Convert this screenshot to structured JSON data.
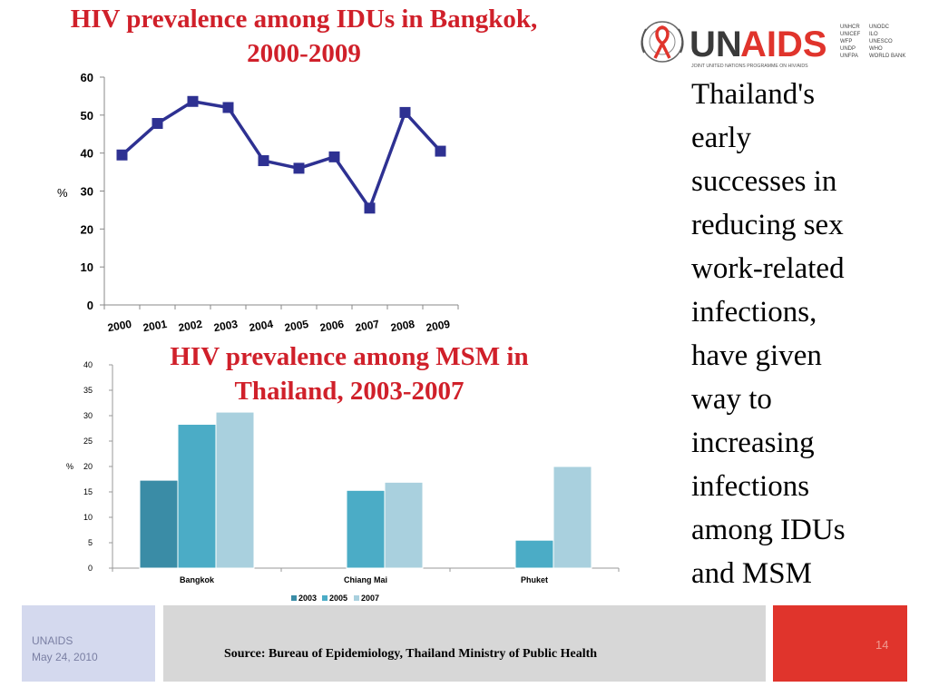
{
  "slide": {
    "side_text_lines": [
      "Thailand's",
      "early",
      "successes in",
      "reducing sex",
      "work-related",
      "infections,",
      "have given",
      "way to",
      "increasing",
      "infections",
      "among IDUs",
      "and MSM"
    ],
    "footer": {
      "org": "UNAIDS",
      "date": "May 24, 2010",
      "source": "Source: Bureau of Epidemiology, Thailand Ministry of Public Health",
      "page": "14"
    }
  },
  "logo": {
    "wordmark": "UNAIDS",
    "tagline": "JOINT UNITED NATIONS PROGRAMME ON HIV/AIDS",
    "cosponsors_col1": [
      "UNHCR",
      "UNICEF",
      "WFP",
      "UNDP",
      "UNFPA"
    ],
    "cosponsors_col2": [
      "UNODC",
      "ILO",
      "UNESCO",
      "WHO",
      "WORLD BANK"
    ],
    "colors": {
      "wordmark": "#3a3a3a",
      "ids": "#e0342c",
      "ribbon": "#e0342c"
    }
  },
  "chart_data": [
    {
      "type": "line",
      "title_line1": "HIV prevalence among IDUs in Bangkok,",
      "title_line2": "2000-2009",
      "ylabel": "%",
      "xlabel": "",
      "ylim": [
        0,
        60
      ],
      "yticks": [
        "0",
        "10",
        "20",
        "30",
        "40",
        "50",
        "60"
      ],
      "categories": [
        "2000",
        "2001",
        "2002",
        "2003",
        "2004",
        "2005",
        "2006",
        "2007",
        "2008",
        "2009"
      ],
      "values": [
        39.5,
        47.8,
        53.6,
        52.0,
        38.0,
        36.0,
        39.0,
        25.5,
        50.7,
        40.5
      ],
      "color": "#2e3192",
      "grid": false
    },
    {
      "type": "bar",
      "title_line1": "HIV prevalence among MSM in",
      "title_line2": "Thailand, 2003-2007",
      "ylabel": "%",
      "xlabel": "",
      "ylim": [
        0,
        40
      ],
      "yticks": [
        "0",
        "5",
        "10",
        "15",
        "20",
        "25",
        "30",
        "35",
        "40"
      ],
      "categories": [
        "Bangkok",
        "Chiang Mai",
        "Phuket"
      ],
      "series": [
        {
          "name": "2003",
          "values": [
            17.3,
            null,
            null
          ],
          "color": "#3a8ca6"
        },
        {
          "name": "2005",
          "values": [
            28.3,
            15.3,
            5.5
          ],
          "color": "#4bacc6"
        },
        {
          "name": "2007",
          "values": [
            30.7,
            16.9,
            20.0
          ],
          "color": "#a9d0de"
        }
      ],
      "legend_position": "bottom",
      "grid": false
    }
  ]
}
